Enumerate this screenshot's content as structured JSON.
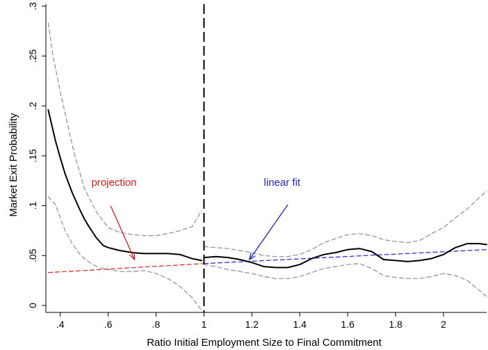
{
  "chart_data": {
    "type": "line",
    "xlabel": "Ratio Initial Employment Size to Final Commitment",
    "ylabel": "Market Exit Probability",
    "xlim": [
      0.34,
      2.18
    ],
    "ylim": [
      -0.007,
      0.302
    ],
    "x_ticks": [
      0.4,
      0.6,
      0.8,
      1,
      1.2,
      1.4,
      1.6,
      1.8,
      2
    ],
    "x_tick_labels": [
      ".4",
      ".6",
      ".8",
      "1",
      "1.2",
      "1.4",
      "1.6",
      "1.8",
      "2"
    ],
    "y_ticks": [
      0,
      0.05,
      0.1,
      0.15,
      0.2,
      0.25,
      0.3
    ],
    "y_tick_labels": [
      "0",
      ".05",
      ".1",
      ".15",
      ".2",
      ".25",
      ".3"
    ],
    "grid": false,
    "threshold": {
      "x": 1,
      "style": "dashed",
      "color": "#000000"
    },
    "colors": {
      "estimate": "#000000",
      "ci": "#8c8c8c",
      "projection": "#e41a1c",
      "linear_fit": "#1f1fd6"
    },
    "series": [
      {
        "role": "estimate",
        "segments": [
          {
            "x": [
              0.35,
              0.38,
              0.4,
              0.42,
              0.45,
              0.48,
              0.5,
              0.52,
              0.55,
              0.58,
              0.6,
              0.65,
              0.7,
              0.75,
              0.8,
              0.85,
              0.9,
              0.95,
              0.99
            ],
            "y": [
              0.196,
              0.165,
              0.148,
              0.132,
              0.113,
              0.097,
              0.087,
              0.079,
              0.068,
              0.06,
              0.058,
              0.055,
              0.053,
              0.052,
              0.052,
              0.052,
              0.051,
              0.047,
              0.045
            ]
          },
          {
            "x": [
              1.0,
              1.05,
              1.1,
              1.15,
              1.2,
              1.25,
              1.3,
              1.35,
              1.4,
              1.45,
              1.5,
              1.55,
              1.6,
              1.65,
              1.7,
              1.75,
              1.8,
              1.85,
              1.9,
              1.95,
              2.0,
              2.05,
              2.1,
              2.15,
              2.18
            ],
            "y": [
              0.048,
              0.049,
              0.048,
              0.046,
              0.043,
              0.039,
              0.038,
              0.038,
              0.041,
              0.047,
              0.051,
              0.053,
              0.056,
              0.057,
              0.054,
              0.046,
              0.045,
              0.044,
              0.045,
              0.047,
              0.051,
              0.058,
              0.062,
              0.062,
              0.061
            ]
          }
        ]
      },
      {
        "role": "ci_upper",
        "segments": [
          {
            "x": [
              0.35,
              0.37,
              0.4,
              0.43,
              0.46,
              0.5,
              0.55,
              0.6,
              0.65,
              0.7,
              0.75,
              0.8,
              0.85,
              0.9,
              0.95,
              0.99
            ],
            "y": [
              0.283,
              0.25,
              0.214,
              0.182,
              0.151,
              0.118,
              0.094,
              0.078,
              0.073,
              0.071,
              0.07,
              0.07,
              0.072,
              0.075,
              0.079,
              0.095
            ]
          },
          {
            "x": [
              1.0,
              1.05,
              1.1,
              1.15,
              1.2,
              1.25,
              1.3,
              1.35,
              1.4,
              1.45,
              1.5,
              1.55,
              1.6,
              1.65,
              1.7,
              1.75,
              1.8,
              1.85,
              1.9,
              1.95,
              2.0,
              2.05,
              2.1,
              2.15,
              2.18
            ],
            "y": [
              0.059,
              0.058,
              0.057,
              0.055,
              0.053,
              0.05,
              0.049,
              0.049,
              0.051,
              0.056,
              0.063,
              0.067,
              0.071,
              0.072,
              0.07,
              0.066,
              0.064,
              0.063,
              0.065,
              0.072,
              0.078,
              0.088,
              0.097,
              0.108,
              0.115
            ]
          }
        ]
      },
      {
        "role": "ci_lower",
        "segments": [
          {
            "x": [
              0.35,
              0.38,
              0.4,
              0.42,
              0.45,
              0.48,
              0.5,
              0.53,
              0.56,
              0.6,
              0.65,
              0.7,
              0.75,
              0.8,
              0.85,
              0.9,
              0.95,
              0.99
            ],
            "y": [
              0.109,
              0.101,
              0.088,
              0.075,
              0.062,
              0.052,
              0.047,
              0.042,
              0.038,
              0.036,
              0.034,
              0.034,
              0.035,
              0.032,
              0.027,
              0.019,
              0.008,
              -0.005
            ]
          },
          {
            "x": [
              1.0,
              1.05,
              1.1,
              1.15,
              1.2,
              1.25,
              1.3,
              1.35,
              1.4,
              1.45,
              1.5,
              1.55,
              1.6,
              1.65,
              1.7,
              1.75,
              1.8,
              1.85,
              1.9,
              1.95,
              2.0,
              2.05,
              2.1,
              2.15,
              2.18
            ],
            "y": [
              0.041,
              0.039,
              0.036,
              0.034,
              0.032,
              0.029,
              0.027,
              0.027,
              0.029,
              0.033,
              0.037,
              0.039,
              0.041,
              0.042,
              0.037,
              0.03,
              0.028,
              0.027,
              0.027,
              0.029,
              0.032,
              0.03,
              0.025,
              0.015,
              0.009
            ]
          }
        ]
      },
      {
        "role": "projection",
        "segments": [
          {
            "x": [
              0.35,
              1.0
            ],
            "y": [
              0.033,
              0.042
            ]
          }
        ]
      },
      {
        "role": "linear_fit",
        "segments": [
          {
            "x": [
              1.0,
              2.18
            ],
            "y": [
              0.042,
              0.056
            ]
          }
        ]
      }
    ],
    "annotations": [
      {
        "text": "projection",
        "color": "#e41a1c",
        "text_at": [
          0.53,
          0.12
        ],
        "arrow_from": [
          0.61,
          0.1
        ],
        "arrow_to": [
          0.71,
          0.046
        ]
      },
      {
        "text": "linear fit",
        "color": "#1f1fd6",
        "text_at": [
          1.25,
          0.12
        ],
        "arrow_from": [
          1.35,
          0.101
        ],
        "arrow_to": [
          1.19,
          0.046
        ]
      }
    ]
  }
}
